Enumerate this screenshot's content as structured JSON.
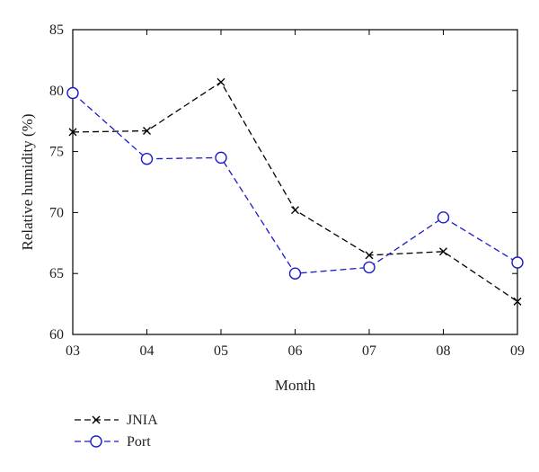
{
  "chart_data": {
    "type": "line",
    "xlabel": "Month",
    "ylabel": "Relative humidity (%)",
    "categories": [
      "03",
      "04",
      "05",
      "06",
      "07",
      "08",
      "09"
    ],
    "ylim": [
      60,
      85
    ],
    "yticks": [
      60,
      65,
      70,
      75,
      80,
      85
    ],
    "grid": false,
    "legend_position": "bottom-left, below plot",
    "series": [
      {
        "name": "JNIA",
        "values": [
          76.6,
          76.7,
          80.7,
          70.2,
          66.5,
          66.8,
          62.7
        ],
        "color": "#000000",
        "line_style": "dashed",
        "marker": "x"
      },
      {
        "name": "Port",
        "values": [
          79.8,
          74.4,
          74.5,
          65.0,
          65.5,
          69.6,
          65.9
        ],
        "color": "#1a1acc",
        "line_style": "dashed",
        "marker": "circle"
      }
    ]
  }
}
